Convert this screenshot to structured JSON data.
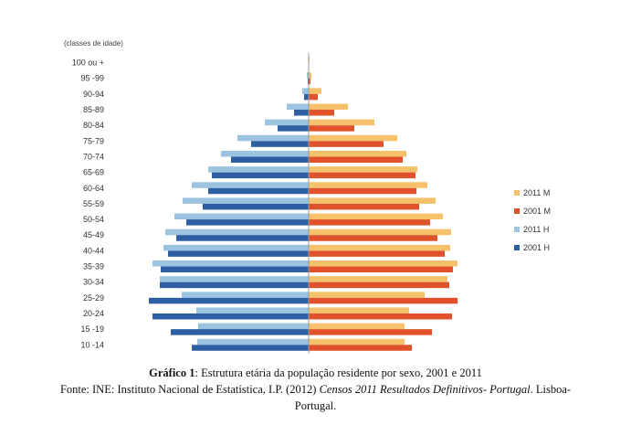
{
  "chart_data": {
    "type": "bar",
    "orientation": "horizontal-population-pyramid",
    "ylabel": "(classes de idade)",
    "categories": [
      "10 -14",
      "15 -19",
      "20-24",
      "25-29",
      "30-34",
      "35-39",
      "40-44",
      "45-49",
      "50-54",
      "55-59",
      "60-64",
      "65-69",
      "70-74",
      "75-79",
      "80-84",
      "85-89",
      "90-94",
      "95 -99",
      "100 ou +"
    ],
    "series": [
      {
        "name": "2011 M",
        "color": "#f5c26b",
        "values": [
          105,
          105,
          110,
          127,
          152,
          163,
          155,
          156,
          147,
          139,
          130,
          119,
          107,
          97,
          72,
          43,
          14,
          3,
          1
        ]
      },
      {
        "name": "2001 M",
        "color": "#e0522c",
        "values": [
          113,
          135,
          157,
          163,
          154,
          158,
          149,
          141,
          133,
          121,
          118,
          117,
          103,
          82,
          50,
          28,
          10,
          2,
          0.5
        ]
      },
      {
        "name": "2011 H",
        "color": "#9cc3e0",
        "values": [
          -122,
          -121,
          -123,
          -139,
          -163,
          -171,
          -159,
          -157,
          -147,
          -138,
          -128,
          -110,
          -96,
          -78,
          -48,
          -24,
          -7,
          -2,
          -0.5
        ]
      },
      {
        "name": "2001 H",
        "color": "#2e5fa3",
        "values": [
          -128,
          -151,
          -171,
          -175,
          -163,
          -162,
          -154,
          -145,
          -134,
          -116,
          -110,
          -106,
          -85,
          -63,
          -34,
          -16,
          -5,
          -1,
          -0.3
        ]
      }
    ],
    "legend_position": "right",
    "grid": false
  },
  "caption": {
    "label": "Gráfico 1",
    "sep": ": ",
    "text": "Estrutura etária da população residente por sexo, 2001 e 2011",
    "source_prefix": "Fonte: INE: Instituto Nacional de Estatística, I.P. (2012) ",
    "source_italic": "Censos 2011 Resultados Definitivos- Portugal",
    "source_suffix": ". Lisboa-",
    "source_line3": "Portugal."
  }
}
